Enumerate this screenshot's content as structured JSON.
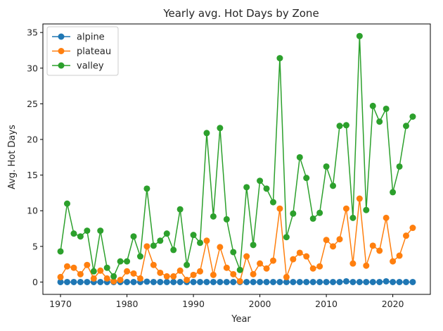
{
  "chart_data": {
    "type": "line",
    "title": "Yearly avg. Hot Days by Zone",
    "xlabel": "Year",
    "ylabel": "Avg. Hot Days",
    "xlim": [
      1967.35,
      2025.65
    ],
    "ylim": [
      -1.73,
      36.2
    ],
    "xticks": [
      1970,
      1980,
      1990,
      2000,
      2010,
      2020
    ],
    "yticks": [
      0,
      5,
      10,
      15,
      20,
      25,
      30,
      35
    ],
    "grid": false,
    "legend_position": "top-left",
    "x": [
      1970,
      1971,
      1972,
      1973,
      1974,
      1975,
      1976,
      1977,
      1978,
      1979,
      1980,
      1981,
      1982,
      1983,
      1984,
      1985,
      1986,
      1987,
      1988,
      1989,
      1990,
      1991,
      1992,
      1993,
      1994,
      1995,
      1996,
      1997,
      1998,
      1999,
      2000,
      2001,
      2002,
      2003,
      2004,
      2005,
      2006,
      2007,
      2008,
      2009,
      2010,
      2011,
      2012,
      2013,
      2014,
      2015,
      2016,
      2017,
      2018,
      2019,
      2020,
      2021,
      2022,
      2023
    ],
    "series": [
      {
        "name": "alpine",
        "color": "#1f77b4",
        "values": [
          0,
          0,
          0,
          0,
          0,
          0,
          0,
          0,
          0,
          0,
          0,
          0,
          0,
          0.05,
          0,
          0,
          0,
          0,
          0,
          0,
          0,
          0,
          0,
          0,
          0,
          0,
          0,
          0,
          0,
          0,
          0,
          0,
          0,
          0,
          0,
          0,
          0,
          0,
          0,
          0,
          0,
          0,
          0,
          0.1,
          0,
          0,
          0,
          0,
          0,
          0.1,
          0,
          0,
          0,
          0
        ]
      },
      {
        "name": "plateau",
        "color": "#ff7f0e",
        "values": [
          0.7,
          2.2,
          2.0,
          1.1,
          2.4,
          0.5,
          1.6,
          0.5,
          0.1,
          0.3,
          1.5,
          1.2,
          0.5,
          5.0,
          2.4,
          1.3,
          0.8,
          0.8,
          1.6,
          0.3,
          1.0,
          1.5,
          5.8,
          1.0,
          4.9,
          2.0,
          1.1,
          0.1,
          3.6,
          1.1,
          2.6,
          1.9,
          3.0,
          10.3,
          0.7,
          3.2,
          4.1,
          3.6,
          1.9,
          2.2,
          5.9,
          5.0,
          6.0,
          10.3,
          2.6,
          11.7,
          2.3,
          5.1,
          4.4,
          9.0,
          2.9,
          3.7,
          6.5,
          7.6
        ]
      },
      {
        "name": "valley",
        "color": "#2ca02c",
        "values": [
          4.3,
          11.0,
          6.8,
          6.4,
          7.2,
          1.5,
          7.2,
          2.0,
          0.8,
          2.9,
          2.9,
          6.4,
          3.6,
          13.1,
          5.1,
          5.8,
          6.8,
          4.5,
          10.2,
          2.4,
          6.6,
          5.5,
          20.9,
          9.2,
          21.6,
          8.8,
          4.2,
          1.7,
          13.3,
          5.2,
          14.2,
          13.1,
          11.2,
          31.4,
          6.3,
          9.6,
          17.5,
          14.6,
          8.9,
          9.7,
          16.2,
          13.5,
          21.9,
          22.0,
          9.0,
          34.5,
          10.1,
          24.7,
          22.5,
          24.3,
          12.6,
          16.2,
          21.9,
          23.2
        ]
      }
    ]
  }
}
